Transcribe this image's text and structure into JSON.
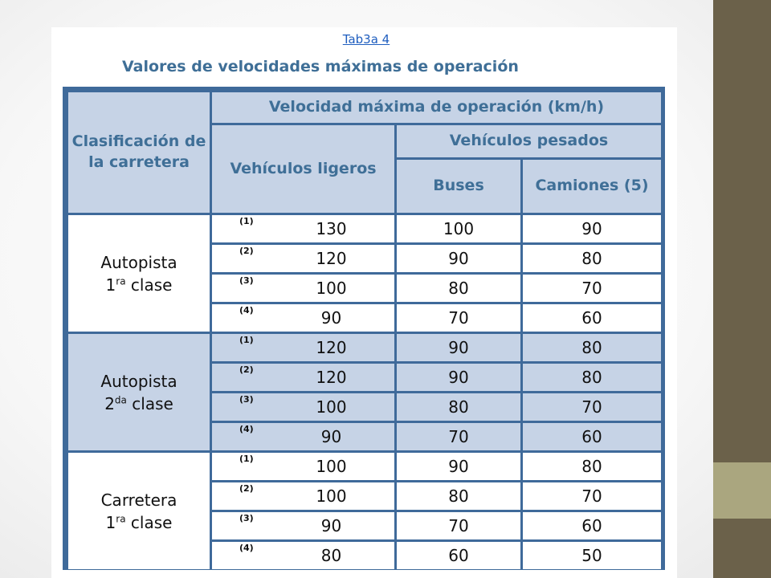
{
  "link_text": "Tab3a 4",
  "title": "Valores de velocidades máximas de operación",
  "headers": {
    "classification": "Clasificación de la carretera",
    "velocity": "Velocidad máxima de operación (km/h)",
    "light": "Vehículos ligeros",
    "heavy": "Vehículos pesados",
    "buses": "Buses",
    "trucks": "Camiones (5)"
  },
  "groups": [
    {
      "label_line1": "Autopista",
      "label_num": "1",
      "label_sup": "ra",
      "label_rest": " clase",
      "rows": [
        {
          "mark": "(1)",
          "light": "130",
          "buses": "100",
          "trucks": "90"
        },
        {
          "mark": "(2)",
          "light": "120",
          "buses": "90",
          "trucks": "80"
        },
        {
          "mark": "(3)",
          "light": "100",
          "buses": "80",
          "trucks": "70"
        },
        {
          "mark": "(4)",
          "light": "90",
          "buses": "70",
          "trucks": "60"
        }
      ]
    },
    {
      "label_line1": "Autopista",
      "label_num": "2",
      "label_sup": "da",
      "label_rest": " clase",
      "rows": [
        {
          "mark": "(1)",
          "light": "120",
          "buses": "90",
          "trucks": "80"
        },
        {
          "mark": "(2)",
          "light": "120",
          "buses": "90",
          "trucks": "80"
        },
        {
          "mark": "(3)",
          "light": "100",
          "buses": "80",
          "trucks": "70"
        },
        {
          "mark": "(4)",
          "light": "90",
          "buses": "70",
          "trucks": "60"
        }
      ]
    },
    {
      "label_line1": "Carretera",
      "label_num": "1",
      "label_sup": "ra",
      "label_rest": " clase",
      "rows": [
        {
          "mark": "(1)",
          "light": "100",
          "buses": "90",
          "trucks": "80"
        },
        {
          "mark": "(2)",
          "light": "100",
          "buses": "80",
          "trucks": "70"
        },
        {
          "mark": "(3)",
          "light": "90",
          "buses": "70",
          "trucks": "60"
        },
        {
          "mark": "(4)",
          "light": "80",
          "buses": "60",
          "trucks": "50"
        }
      ]
    }
  ]
}
